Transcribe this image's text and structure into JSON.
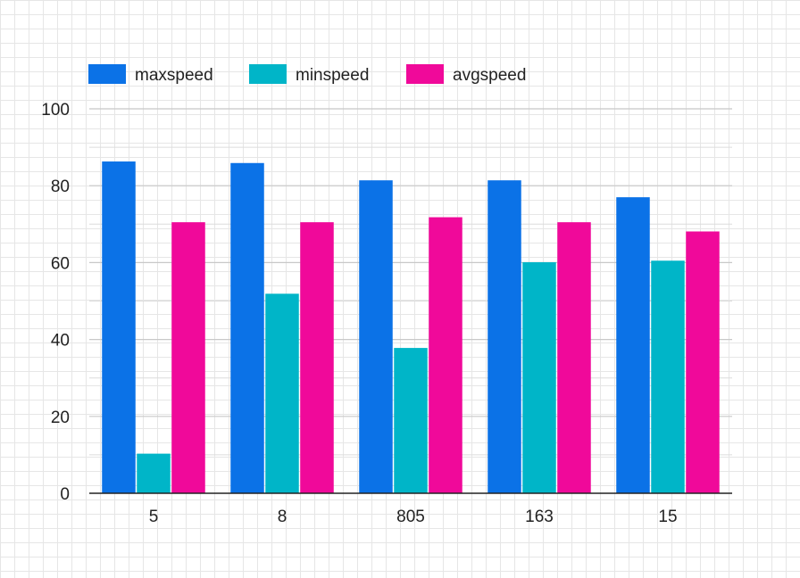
{
  "chart_data": {
    "type": "bar",
    "categories": [
      "5",
      "8",
      "805",
      "163",
      "15"
    ],
    "series": [
      {
        "name": "maxspeed",
        "color": "#0b72e7",
        "values": [
          86.3,
          85.9,
          81.4,
          81.4,
          77.0
        ]
      },
      {
        "name": "minspeed",
        "color": "#00b5c8",
        "values": [
          10.3,
          51.9,
          37.8,
          60.1,
          60.5
        ]
      },
      {
        "name": "avgspeed",
        "color": "#f0099a",
        "values": [
          70.5,
          70.5,
          71.8,
          70.5,
          68.1
        ]
      }
    ],
    "title": "",
    "xlabel": "",
    "ylabel": "",
    "ylim": [
      0,
      100
    ],
    "yticks": [
      0,
      20,
      40,
      60,
      80,
      100
    ],
    "grid": true,
    "legend_position": "top-left"
  }
}
